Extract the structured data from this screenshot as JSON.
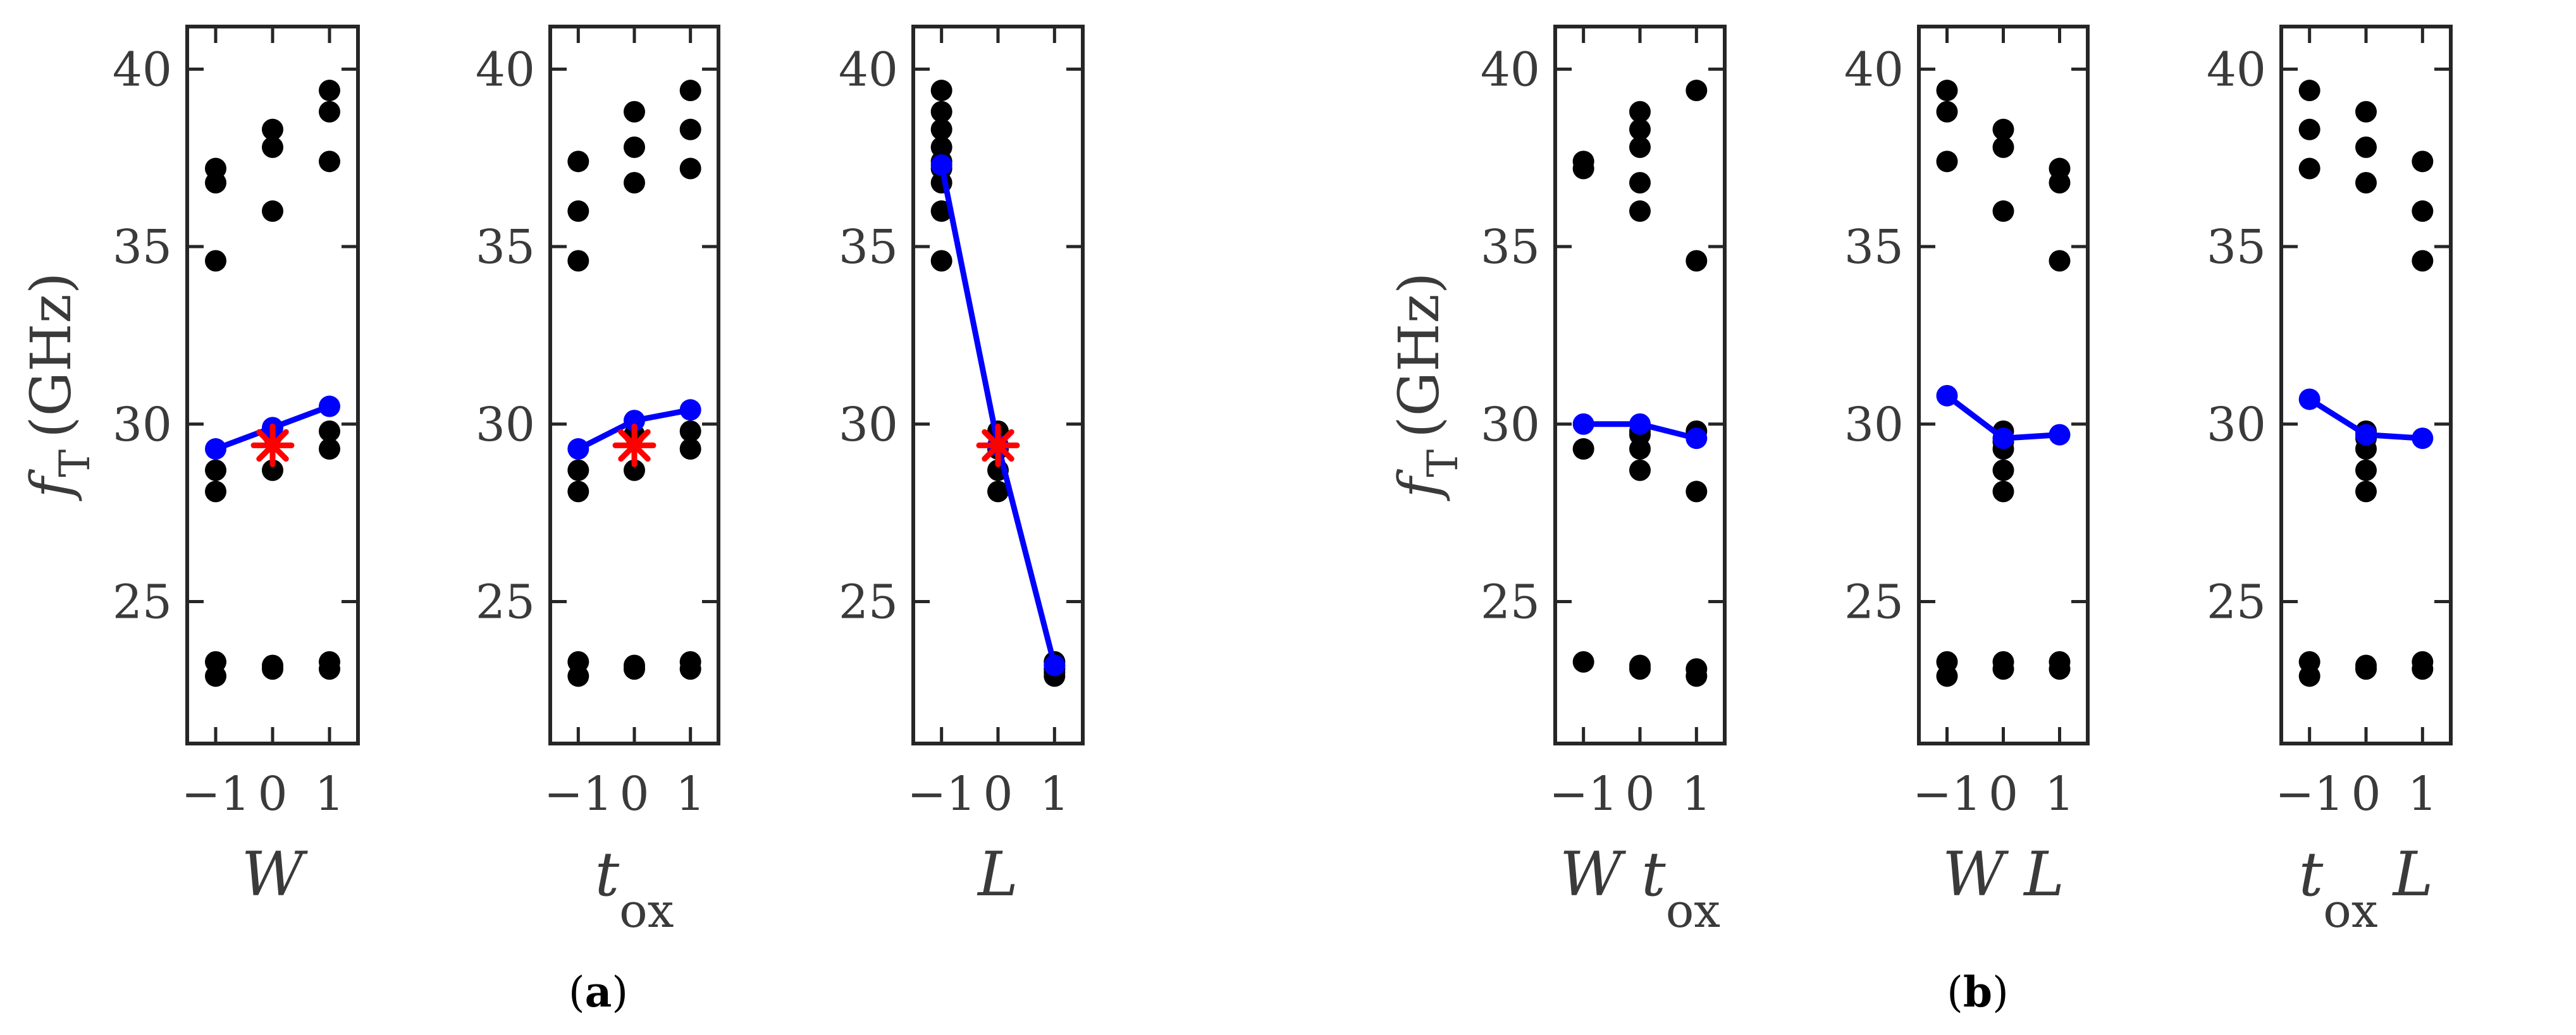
{
  "colors": {
    "data_points": "#000000",
    "main_effect_line": "#0000ff",
    "center_point": "#ff0000",
    "axes": "#262626"
  },
  "chart_data": [
    {
      "type": "scatter",
      "panel": "a",
      "xlabel": "W",
      "xlabel_sub": "",
      "ylabel": "f",
      "ylabel_sub": "T",
      "ylabel_unit": "(GHz)",
      "xticks": [
        "−1",
        "0",
        "1"
      ],
      "xtick_values": [
        -1,
        0,
        1
      ],
      "yticks": [
        25,
        30,
        35,
        40
      ],
      "xlim": [
        -1.5,
        1.5
      ],
      "ylim": [
        21,
        41.2
      ],
      "points": {
        "x": [
          -1,
          -1,
          -1,
          -1,
          -1,
          -1,
          -1,
          0,
          0,
          0,
          0,
          0,
          0,
          0,
          1,
          1,
          1,
          1,
          1,
          1,
          1
        ],
        "y": [
          37.2,
          36.8,
          34.6,
          28.7,
          28.1,
          23.3,
          22.9,
          38.3,
          37.8,
          36.0,
          28.7,
          23.2,
          23.1,
          29.7,
          39.4,
          38.8,
          37.4,
          29.8,
          29.3,
          23.3,
          23.1
        ]
      },
      "main_effect": {
        "x": [
          -1,
          0,
          1
        ],
        "y": [
          29.3,
          29.9,
          30.5
        ]
      },
      "center_point": {
        "x": 0,
        "y": 29.4
      }
    },
    {
      "type": "scatter",
      "panel": "a",
      "xlabel": "t",
      "xlabel_sub": "ox",
      "ylabel": "",
      "xticks": [
        "−1",
        "0",
        "1"
      ],
      "xtick_values": [
        -1,
        0,
        1
      ],
      "yticks": [
        25,
        30,
        35,
        40
      ],
      "xlim": [
        -1.5,
        1.5
      ],
      "ylim": [
        21,
        41.2
      ],
      "points": {
        "x": [
          -1,
          -1,
          -1,
          -1,
          -1,
          -1,
          -1,
          0,
          0,
          0,
          0,
          0,
          0,
          0,
          1,
          1,
          1,
          1,
          1,
          1,
          1
        ],
        "y": [
          37.4,
          36.0,
          34.6,
          28.7,
          28.1,
          23.3,
          22.9,
          38.8,
          37.8,
          36.8,
          28.7,
          23.2,
          23.1,
          29.7,
          39.4,
          38.3,
          37.2,
          29.8,
          29.3,
          23.3,
          23.1
        ]
      },
      "main_effect": {
        "x": [
          -1,
          0,
          1
        ],
        "y": [
          29.3,
          30.1,
          30.4
        ]
      },
      "center_point": {
        "x": 0,
        "y": 29.4
      }
    },
    {
      "type": "scatter",
      "panel": "a",
      "xlabel": "L",
      "xlabel_sub": "",
      "ylabel": "",
      "xticks": [
        "−1",
        "0",
        "1"
      ],
      "xtick_values": [
        -1,
        0,
        1
      ],
      "yticks": [
        25,
        30,
        35,
        40
      ],
      "xlim": [
        -1.5,
        1.5
      ],
      "ylim": [
        21,
        41.2
      ],
      "points": {
        "x": [
          -1,
          -1,
          -1,
          -1,
          -1,
          -1,
          -1,
          -1,
          -1,
          0,
          0,
          0,
          0,
          1,
          1,
          1,
          1,
          1,
          1,
          1
        ],
        "y": [
          39.4,
          38.8,
          38.3,
          37.8,
          37.4,
          37.2,
          36.8,
          36.0,
          34.6,
          29.8,
          29.3,
          28.7,
          28.1,
          23.3,
          23.3,
          23.2,
          23.1,
          23.1,
          22.9,
          23.0
        ]
      },
      "main_effect": {
        "x": [
          -1,
          0,
          1
        ],
        "y": [
          37.3,
          29.4,
          23.2
        ]
      },
      "center_point": {
        "x": 0,
        "y": 29.4
      }
    },
    {
      "type": "scatter",
      "panel": "b",
      "xlabel": "W t",
      "xlabel_sub": "ox",
      "ylabel": "f",
      "ylabel_sub": "T",
      "ylabel_unit": "(GHz)",
      "xticks": [
        "−1",
        "0",
        "1"
      ],
      "xtick_values": [
        -1,
        0,
        1
      ],
      "yticks": [
        25,
        30,
        35,
        40
      ],
      "xlim": [
        -1.5,
        1.5
      ],
      "ylim": [
        21,
        41.2
      ],
      "points": {
        "x": [
          -1,
          -1,
          -1,
          -1,
          0,
          0,
          0,
          0,
          0,
          0,
          0,
          0,
          0,
          0,
          0,
          1,
          1,
          1,
          1,
          1,
          1
        ],
        "y": [
          37.4,
          37.2,
          29.3,
          23.3,
          38.8,
          38.3,
          37.8,
          36.8,
          36.0,
          29.8,
          29.7,
          29.3,
          28.7,
          23.2,
          23.1,
          39.4,
          34.6,
          29.8,
          28.1,
          23.1,
          22.9
        ]
      },
      "main_effect": {
        "x": [
          -1,
          0,
          1
        ],
        "y": [
          30.0,
          30.0,
          29.6
        ]
      }
    },
    {
      "type": "scatter",
      "panel": "b",
      "xlabel": "W L",
      "xlabel_sub": "",
      "ylabel": "",
      "xticks": [
        "−1",
        "0",
        "1"
      ],
      "xtick_values": [
        -1,
        0,
        1
      ],
      "yticks": [
        25,
        30,
        35,
        40
      ],
      "xlim": [
        -1.5,
        1.5
      ],
      "ylim": [
        21,
        41.2
      ],
      "points": {
        "x": [
          -1,
          -1,
          -1,
          -1,
          -1,
          0,
          0,
          0,
          0,
          0,
          0,
          0,
          0,
          0,
          0,
          1,
          1,
          1,
          1,
          1
        ],
        "y": [
          39.4,
          38.8,
          37.4,
          23.3,
          22.9,
          38.3,
          37.8,
          36.0,
          29.8,
          29.3,
          28.7,
          28.1,
          23.3,
          23.1,
          29.5,
          37.2,
          36.8,
          34.6,
          23.3,
          23.1
        ]
      },
      "main_effect": {
        "x": [
          -1,
          0,
          1
        ],
        "y": [
          30.8,
          29.6,
          29.7
        ]
      }
    },
    {
      "type": "scatter",
      "panel": "b",
      "xlabel": "t",
      "xlabel_sub": "ox",
      "xlabel_suffix": "L",
      "ylabel": "",
      "xticks": [
        "−1",
        "0",
        "1"
      ],
      "xtick_values": [
        -1,
        0,
        1
      ],
      "yticks": [
        25,
        30,
        35,
        40
      ],
      "xlim": [
        -1.5,
        1.5
      ],
      "ylim": [
        21,
        41.2
      ],
      "points": {
        "x": [
          -1,
          -1,
          -1,
          -1,
          -1,
          0,
          0,
          0,
          0,
          0,
          0,
          0,
          0,
          0,
          0,
          1,
          1,
          1,
          1,
          1
        ],
        "y": [
          39.4,
          38.3,
          37.2,
          23.3,
          22.9,
          38.8,
          37.8,
          36.8,
          29.8,
          29.3,
          28.7,
          28.1,
          23.2,
          23.1,
          29.6,
          37.4,
          36.0,
          34.6,
          23.3,
          23.1
        ]
      },
      "main_effect": {
        "x": [
          -1,
          0,
          1
        ],
        "y": [
          30.7,
          29.7,
          29.6
        ]
      }
    }
  ],
  "captions": [
    {
      "open": "(",
      "letter": "a",
      "close": ")"
    },
    {
      "open": "(",
      "letter": "b",
      "close": ")"
    }
  ]
}
